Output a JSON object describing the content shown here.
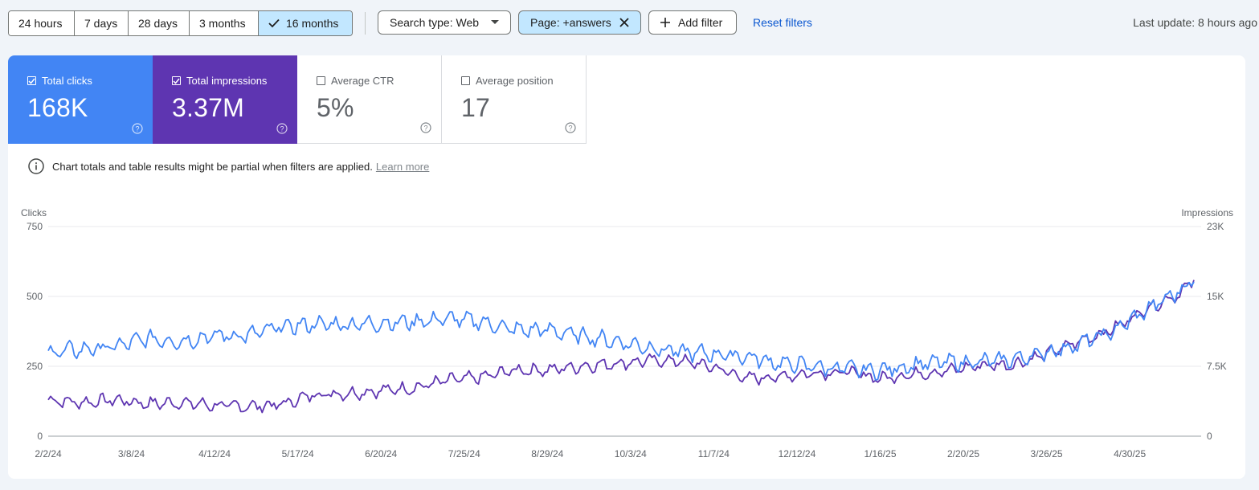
{
  "date_ranges": [
    {
      "label": "24 hours",
      "selected": false
    },
    {
      "label": "7 days",
      "selected": false
    },
    {
      "label": "28 days",
      "selected": false
    },
    {
      "label": "3 months",
      "selected": false
    },
    {
      "label": "16 months",
      "selected": true
    }
  ],
  "filters": {
    "search_type": "Search type: Web",
    "page": "Page: +answers",
    "add_filter": "Add filter",
    "reset": "Reset filters"
  },
  "last_update": "Last update: 8 hours ago",
  "metrics": [
    {
      "label": "Total clicks",
      "value": "168K",
      "checked": true,
      "color": "#4285f4"
    },
    {
      "label": "Total impressions",
      "value": "3.37M",
      "checked": true,
      "color": "#5e35b1"
    },
    {
      "label": "Average CTR",
      "value": "5%",
      "checked": false
    },
    {
      "label": "Average position",
      "value": "17",
      "checked": false
    }
  ],
  "notice": {
    "text": "Chart totals and table results might be partial when filters are applied.",
    "link": "Learn more"
  },
  "colors": {
    "clicks": "#4285f4",
    "impressions": "#5e35b1",
    "selected_chip": "#c2e7ff",
    "link": "#0b57d0"
  },
  "icons": [
    "check-icon",
    "dropdown-arrow-icon",
    "close-icon",
    "plus-icon",
    "checkbox-icon",
    "help-icon",
    "info-icon"
  ],
  "chart_data": {
    "type": "line",
    "left_axis_label": "Clicks",
    "right_axis_label": "Impressions",
    "y_left_ticks": [
      "0",
      "250",
      "500",
      "750"
    ],
    "y_right_ticks": [
      "0",
      "7.5K",
      "15K",
      "23K"
    ],
    "y_left_range": [
      0,
      750
    ],
    "y_right_range": [
      0,
      22500
    ],
    "x_ticks": [
      "2/2/24",
      "3/8/24",
      "4/12/24",
      "5/17/24",
      "6/20/24",
      "7/25/24",
      "8/29/24",
      "10/3/24",
      "11/7/24",
      "12/12/24",
      "1/16/25",
      "2/20/25",
      "3/26/25",
      "4/30/25"
    ],
    "grid": true,
    "series": [
      {
        "name": "Clicks",
        "axis": "left",
        "color": "#4285f4",
        "anchors": [
          [
            0,
            300
          ],
          [
            14,
            310
          ],
          [
            28,
            320
          ],
          [
            42,
            350
          ],
          [
            56,
            340
          ],
          [
            70,
            360
          ],
          [
            84,
            360
          ],
          [
            98,
            390
          ],
          [
            112,
            400
          ],
          [
            126,
            400
          ],
          [
            140,
            405
          ],
          [
            154,
            410
          ],
          [
            168,
            420
          ],
          [
            182,
            410
          ],
          [
            196,
            380
          ],
          [
            210,
            380
          ],
          [
            224,
            360
          ],
          [
            238,
            340
          ],
          [
            252,
            320
          ],
          [
            266,
            300
          ],
          [
            280,
            295
          ],
          [
            294,
            285
          ],
          [
            308,
            260
          ],
          [
            322,
            250
          ],
          [
            336,
            240
          ],
          [
            350,
            235
          ],
          [
            364,
            255
          ],
          [
            378,
            265
          ],
          [
            392,
            265
          ],
          [
            406,
            275
          ],
          [
            420,
            300
          ],
          [
            434,
            330
          ],
          [
            448,
            375
          ],
          [
            462,
            450
          ],
          [
            476,
            520
          ],
          [
            482,
            560
          ]
        ],
        "noise": 22
      },
      {
        "name": "Impressions",
        "axis": "right",
        "color": "#5e35b1",
        "anchors": [
          [
            0,
            3900
          ],
          [
            14,
            3600
          ],
          [
            28,
            3900
          ],
          [
            42,
            3500
          ],
          [
            56,
            3600
          ],
          [
            70,
            3300
          ],
          [
            84,
            3200
          ],
          [
            98,
            3400
          ],
          [
            112,
            4500
          ],
          [
            126,
            4600
          ],
          [
            140,
            4900
          ],
          [
            154,
            5200
          ],
          [
            168,
            6000
          ],
          [
            182,
            6300
          ],
          [
            196,
            7100
          ],
          [
            210,
            7100
          ],
          [
            224,
            7500
          ],
          [
            238,
            7800
          ],
          [
            252,
            8100
          ],
          [
            266,
            8100
          ],
          [
            280,
            7400
          ],
          [
            294,
            6200
          ],
          [
            308,
            6400
          ],
          [
            322,
            6800
          ],
          [
            336,
            6900
          ],
          [
            350,
            6200
          ],
          [
            364,
            6700
          ],
          [
            378,
            7000
          ],
          [
            392,
            7600
          ],
          [
            406,
            7700
          ],
          [
            420,
            8800
          ],
          [
            434,
            10200
          ],
          [
            448,
            11500
          ],
          [
            462,
            13700
          ],
          [
            476,
            15300
          ],
          [
            482,
            16800
          ]
        ],
        "noise": 500
      }
    ]
  }
}
